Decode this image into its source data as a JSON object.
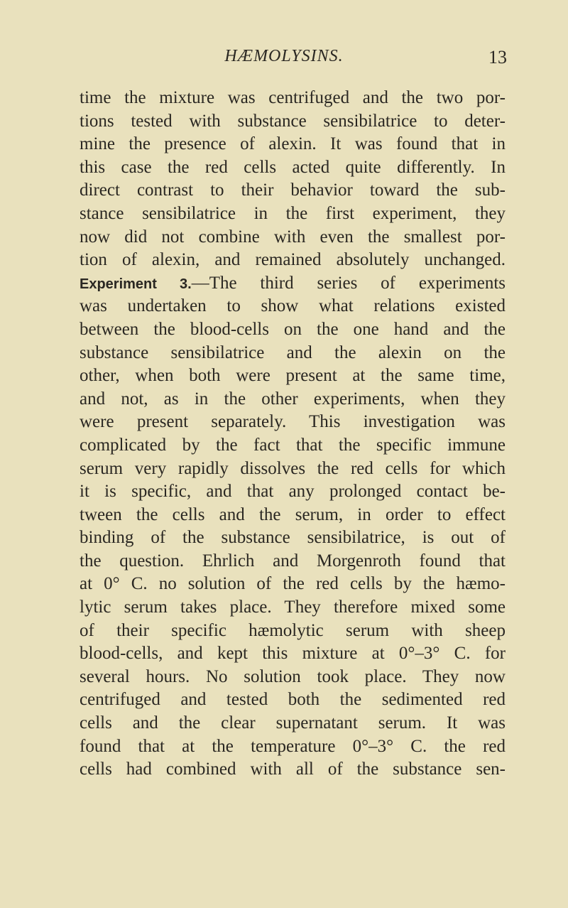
{
  "header": {
    "title": "HÆMOLYSINS.",
    "page_number": "13"
  },
  "experiment_label": "Experiment 3.",
  "lines": [
    "time the mixture was centrifuged and the two por-",
    "tions tested with substance sensibilatrice to deter-",
    "mine the presence of alexin. It was found that in",
    "this case the red cells acted quite differently. In",
    "direct contrast to their behavior toward the sub-",
    "stance sensibilatrice in the first experiment, they",
    "now did not combine with even the smallest por-",
    "tion of alexin, and remained absolutely unchanged.",
    "—The third series of experiments",
    "was undertaken to show what relations existed",
    "between the blood-cells on the one hand and the",
    "substance sensibilatrice and the alexin on the",
    "other, when both were present at the same time,",
    "and not, as in the other experiments, when they",
    "were present separately. This investigation was",
    "complicated by the fact that the specific immune",
    "serum very rapidly dissolves the red cells for which",
    "it is specific, and that any prolonged contact be-",
    "tween the cells and the serum, in order to effect",
    "binding of the substance sensibilatrice, is out of",
    "the question. Ehrlich and Morgenroth found that",
    "at 0° C. no solution of the red cells by the hæmo-",
    "lytic serum takes place. They therefore mixed some",
    "of their specific hæmolytic serum with sheep",
    "blood-cells, and kept this mixture at 0°–3° C. for",
    "several hours. No solution took place. They now",
    "centrifuged and tested both the sedimented red",
    "cells and the clear supernatant serum. It was",
    "found that at the temperature 0°–3° C. the red",
    "cells had combined with all of the substance sen-"
  ]
}
